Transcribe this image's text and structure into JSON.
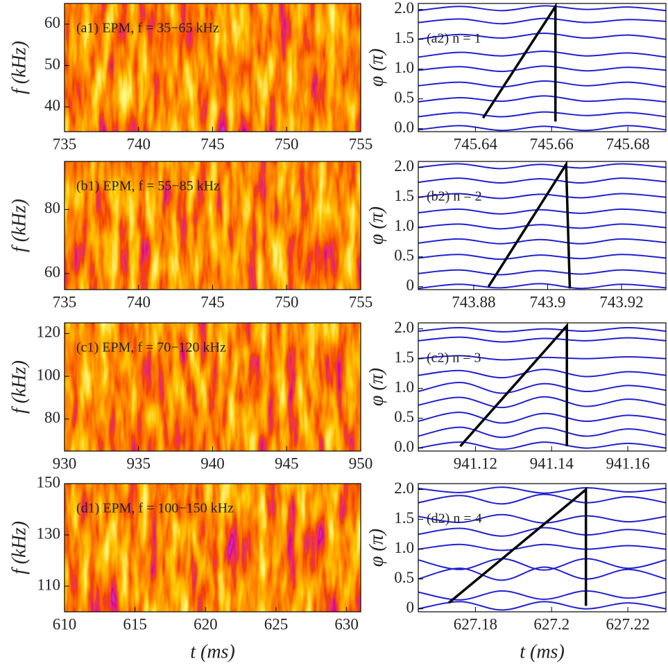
{
  "chart_data": [
    {
      "type": "spectrogram",
      "label": "(a1) EPM, f = 35−65 kHz",
      "ylabel": "f (kHz)",
      "xlim": [
        735,
        755
      ],
      "xticks": [
        735,
        740,
        745,
        750,
        755
      ],
      "ylim": [
        34,
        65
      ],
      "yticks": [
        40,
        50,
        60
      ]
    },
    {
      "type": "line",
      "label": "(a2) n = 1",
      "ylabel": "φ (π)",
      "xlim": [
        745.625,
        745.69
      ],
      "xticks": [
        745.64,
        745.66,
        745.68
      ],
      "ylim": [
        -0.05,
        2.1
      ],
      "yticks": [
        {
          "value": 0,
          "label": "0.0"
        },
        0.5,
        {
          "value": 1,
          "label": "1.0"
        },
        1.5,
        {
          "value": 2,
          "label": "2.0"
        }
      ],
      "x": [
        745.625,
        745.636,
        745.647,
        745.658,
        745.669,
        745.68,
        745.69
      ],
      "series": [
        {
          "color": "#2020d0",
          "values": [
            -0.02,
            0.05,
            -0.03,
            0.04,
            -0.03,
            0.05,
            -0.02
          ]
        },
        {
          "color": "#2020d0",
          "values": [
            0.2,
            0.27,
            0.2,
            0.28,
            0.22,
            0.27,
            0.2
          ]
        },
        {
          "color": "#2020d0",
          "values": [
            0.45,
            0.52,
            0.46,
            0.55,
            0.46,
            0.5,
            0.45
          ]
        },
        {
          "color": "#2020d0",
          "values": [
            0.72,
            0.78,
            0.7,
            0.8,
            0.72,
            0.78,
            0.7
          ]
        },
        {
          "color": "#2020d0",
          "values": [
            0.98,
            1.04,
            0.96,
            1.05,
            0.97,
            1.03,
            0.98
          ]
        },
        {
          "color": "#2020d0",
          "values": [
            1.2,
            1.28,
            1.22,
            1.3,
            1.22,
            1.27,
            1.2
          ]
        },
        {
          "color": "#2020d0",
          "values": [
            1.5,
            1.58,
            1.52,
            1.6,
            1.52,
            1.57,
            1.5
          ]
        },
        {
          "color": "#2020d0",
          "values": [
            1.78,
            1.84,
            1.76,
            1.85,
            1.78,
            1.83,
            1.8
          ]
        },
        {
          "color": "#2020d0",
          "values": [
            1.98,
            2.05,
            1.98,
            2.06,
            2.0,
            2.04,
            1.98
          ]
        }
      ],
      "trend": {
        "color": "#000000",
        "x": [
          745.642,
          745.661,
          745.661
        ],
        "values": [
          0.18,
          2.05,
          0.12
        ]
      }
    },
    {
      "type": "spectrogram",
      "label": "(b1) EPM, f = 55−85 kHz",
      "ylabel": "f (kHz)",
      "xlim": [
        735,
        755
      ],
      "xticks": [
        735,
        740,
        745,
        750,
        755
      ],
      "ylim": [
        55,
        95
      ],
      "yticks": [
        60,
        80
      ]
    },
    {
      "type": "line",
      "label": "(b2) n = 2",
      "ylabel": "φ (π)",
      "xlim": [
        743.865,
        743.932
      ],
      "xticks": [
        743.88,
        743.9,
        743.92
      ],
      "ylim": [
        -0.05,
        2.1
      ],
      "yticks": [
        {
          "value": 0,
          "label": "0"
        },
        0.5,
        {
          "value": 1,
          "label": "1.0"
        },
        1.5,
        {
          "value": 2,
          "label": "2.0"
        }
      ],
      "x": [
        743.865,
        743.876,
        743.887,
        743.898,
        743.909,
        743.92,
        743.932
      ],
      "series": [
        {
          "color": "#2020d0",
          "values": [
            -0.03,
            0.04,
            -0.02,
            0.05,
            -0.03,
            0.04,
            -0.02
          ]
        },
        {
          "color": "#2020d0",
          "values": [
            0.22,
            0.28,
            0.2,
            0.27,
            0.21,
            0.28,
            0.22
          ]
        },
        {
          "color": "#2020d0",
          "values": [
            0.48,
            0.54,
            0.46,
            0.53,
            0.47,
            0.54,
            0.48
          ]
        },
        {
          "color": "#2020d0",
          "values": [
            0.73,
            0.8,
            0.72,
            0.79,
            0.72,
            0.8,
            0.74
          ]
        },
        {
          "color": "#2020d0",
          "values": [
            0.99,
            1.05,
            0.97,
            1.04,
            0.98,
            1.05,
            0.99
          ]
        },
        {
          "color": "#2020d0",
          "values": [
            1.24,
            1.3,
            1.22,
            1.29,
            1.23,
            1.3,
            1.24
          ]
        },
        {
          "color": "#2020d0",
          "values": [
            1.5,
            1.56,
            1.48,
            1.55,
            1.49,
            1.56,
            1.5
          ]
        },
        {
          "color": "#2020d0",
          "values": [
            1.75,
            1.82,
            1.74,
            1.81,
            1.74,
            1.82,
            1.76
          ]
        },
        {
          "color": "#2020d0",
          "values": [
            2.0,
            2.06,
            1.98,
            2.05,
            1.99,
            2.06,
            2.0
          ]
        }
      ],
      "trend": {
        "color": "#000000",
        "x": [
          743.884,
          743.905,
          743.906
        ],
        "values": [
          0.0,
          2.05,
          -0.03
        ]
      }
    },
    {
      "type": "spectrogram",
      "label": "(c1) EPM, f = 70−120 kHz",
      "ylabel": "f (kHz)",
      "xlim": [
        930,
        950
      ],
      "xticks": [
        930,
        935,
        940,
        945,
        950
      ],
      "ylim": [
        65,
        125
      ],
      "yticks": [
        80,
        100,
        120
      ]
    },
    {
      "type": "line",
      "label": "(c2) n = 3",
      "ylabel": "φ (π)",
      "xlim": [
        941.105,
        941.17
      ],
      "xticks": [
        941.12,
        941.14,
        941.16
      ],
      "ylim": [
        -0.05,
        2.1
      ],
      "yticks": [
        {
          "value": 0,
          "label": "0.0"
        },
        0.5,
        {
          "value": 1,
          "label": "1.0"
        },
        1.5,
        {
          "value": 2,
          "label": "2.0"
        }
      ],
      "x": [
        941.105,
        941.116,
        941.127,
        941.138,
        941.149,
        941.16,
        941.17
      ],
      "series": [
        {
          "color": "#2020d0",
          "values": [
            0.0,
            0.1,
            -0.02,
            0.1,
            0.0,
            0.08,
            0.0
          ]
        },
        {
          "color": "#2020d0",
          "values": [
            0.2,
            0.35,
            0.18,
            0.34,
            0.2,
            0.32,
            0.22
          ]
        },
        {
          "color": "#2020d0",
          "values": [
            0.45,
            0.6,
            0.42,
            0.58,
            0.45,
            0.55,
            0.47
          ]
        },
        {
          "color": "#2020d0",
          "values": [
            0.72,
            0.85,
            0.68,
            0.86,
            0.7,
            0.82,
            0.72
          ]
        },
        {
          "color": "#2020d0",
          "values": [
            0.95,
            1.1,
            0.92,
            1.08,
            0.95,
            1.05,
            0.97
          ]
        },
        {
          "color": "#2020d0",
          "values": [
            1.22,
            1.3,
            1.18,
            1.32,
            1.2,
            1.28,
            1.22
          ]
        },
        {
          "color": "#2020d0",
          "values": [
            1.5,
            1.55,
            1.48,
            1.52,
            1.5,
            1.53,
            1.5
          ]
        },
        {
          "color": "#2020d0",
          "values": [
            1.8,
            1.86,
            1.78,
            1.84,
            1.8,
            1.85,
            1.8
          ]
        },
        {
          "color": "#2020d0",
          "values": [
            1.96,
            2.02,
            1.95,
            2.0,
            1.96,
            2.02,
            1.96
          ]
        }
      ],
      "trend": {
        "color": "#000000",
        "x": [
          941.116,
          941.144,
          941.144
        ],
        "values": [
          0.03,
          2.05,
          0.03
        ]
      }
    },
    {
      "type": "spectrogram",
      "label": "(d1) EPM, f = 100−150 kHz",
      "ylabel": "f (kHz)",
      "xlim": [
        610,
        631
      ],
      "xticks": [
        610,
        615,
        620,
        625,
        630
      ],
      "ylim": [
        100,
        150
      ],
      "yticks": [
        110,
        130,
        150
      ],
      "xlabel": "t (ms)"
    },
    {
      "type": "line",
      "label": "(d2) n = 4",
      "ylabel": "φ (π)",
      "xlim": [
        627.165,
        627.23
      ],
      "xticks": [
        627.18,
        627.2,
        627.22
      ],
      "ylim": [
        -0.05,
        2.1
      ],
      "yticks": [
        {
          "value": 0,
          "label": "0"
        },
        0.5,
        {
          "value": 1,
          "label": "1.0"
        },
        1.5,
        {
          "value": 2,
          "label": "2.0"
        }
      ],
      "xlabel": "t (ms)",
      "x": [
        627.165,
        627.176,
        627.187,
        627.198,
        627.209,
        627.22,
        627.23
      ],
      "series": [
        {
          "color": "#2020d0",
          "values": [
            0.0,
            0.12,
            -0.02,
            0.12,
            0.0,
            0.1,
            0.0
          ]
        },
        {
          "color": "#2020d0",
          "values": [
            0.28,
            0.15,
            0.3,
            0.16,
            0.3,
            0.18,
            0.28
          ]
        },
        {
          "color": "#2020d0",
          "values": [
            0.5,
            0.68,
            0.48,
            0.7,
            0.5,
            0.66,
            0.5
          ]
        },
        {
          "color": "#2020d0",
          "values": [
            0.82,
            0.66,
            0.84,
            0.65,
            0.84,
            0.68,
            0.82
          ]
        },
        {
          "color": "#2020d0",
          "values": [
            1.0,
            1.08,
            0.98,
            1.08,
            1.0,
            1.06,
            1.0
          ]
        },
        {
          "color": "#2020d0",
          "values": [
            1.25,
            1.35,
            1.22,
            1.36,
            1.24,
            1.33,
            1.25
          ]
        },
        {
          "color": "#2020d0",
          "values": [
            1.55,
            1.45,
            1.58,
            1.44,
            1.56,
            1.46,
            1.55
          ]
        },
        {
          "color": "#2020d0",
          "values": [
            1.78,
            1.9,
            1.76,
            1.92,
            1.78,
            1.88,
            1.78
          ]
        },
        {
          "color": "#2020d0",
          "values": [
            2.02,
            1.95,
            2.04,
            1.94,
            2.03,
            1.96,
            2.02
          ]
        }
      ],
      "trend": {
        "color": "#000000",
        "x": [
          627.173,
          627.209,
          627.209
        ],
        "values": [
          0.1,
          2.0,
          0.05
        ]
      }
    }
  ]
}
